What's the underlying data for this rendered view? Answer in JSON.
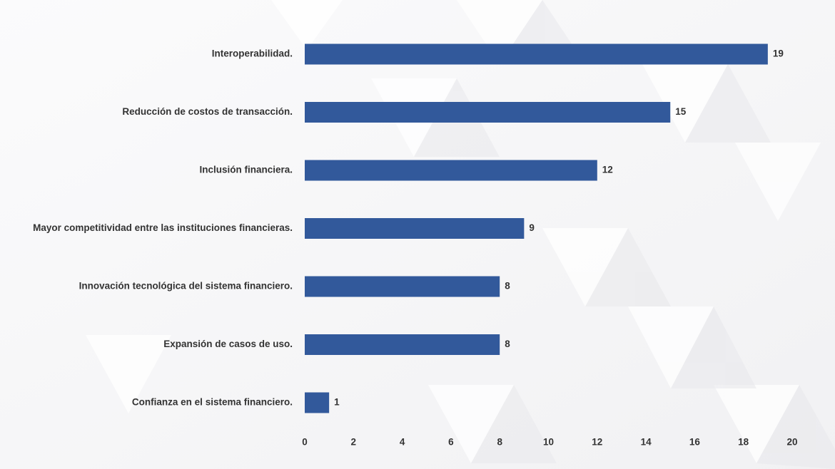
{
  "colors": {
    "bar": "#32599b",
    "text": "#333333",
    "background": "#f7f7f8"
  },
  "chart_data": {
    "type": "bar",
    "orientation": "horizontal",
    "title": "",
    "xlabel": "",
    "ylabel": "",
    "grid": false,
    "legend": "none",
    "xlim": [
      0,
      20
    ],
    "xticks": [
      "0",
      "2",
      "4",
      "6",
      "8",
      "10",
      "12",
      "14",
      "16",
      "18",
      "20"
    ],
    "categories": [
      "Interoperabilidad.",
      "Reducción de costos de transacción.",
      "Inclusión financiera.",
      "Mayor competitividad entre las instituciones financieras.",
      "Innovación tecnológica del sistema financiero.",
      "Expansión de casos de uso.",
      "Confianza en el sistema financiero."
    ],
    "values": [
      19,
      15,
      12,
      9,
      8,
      8,
      1
    ],
    "value_labels": [
      "19",
      "15",
      "12",
      "9",
      "8",
      "8",
      "1"
    ]
  }
}
